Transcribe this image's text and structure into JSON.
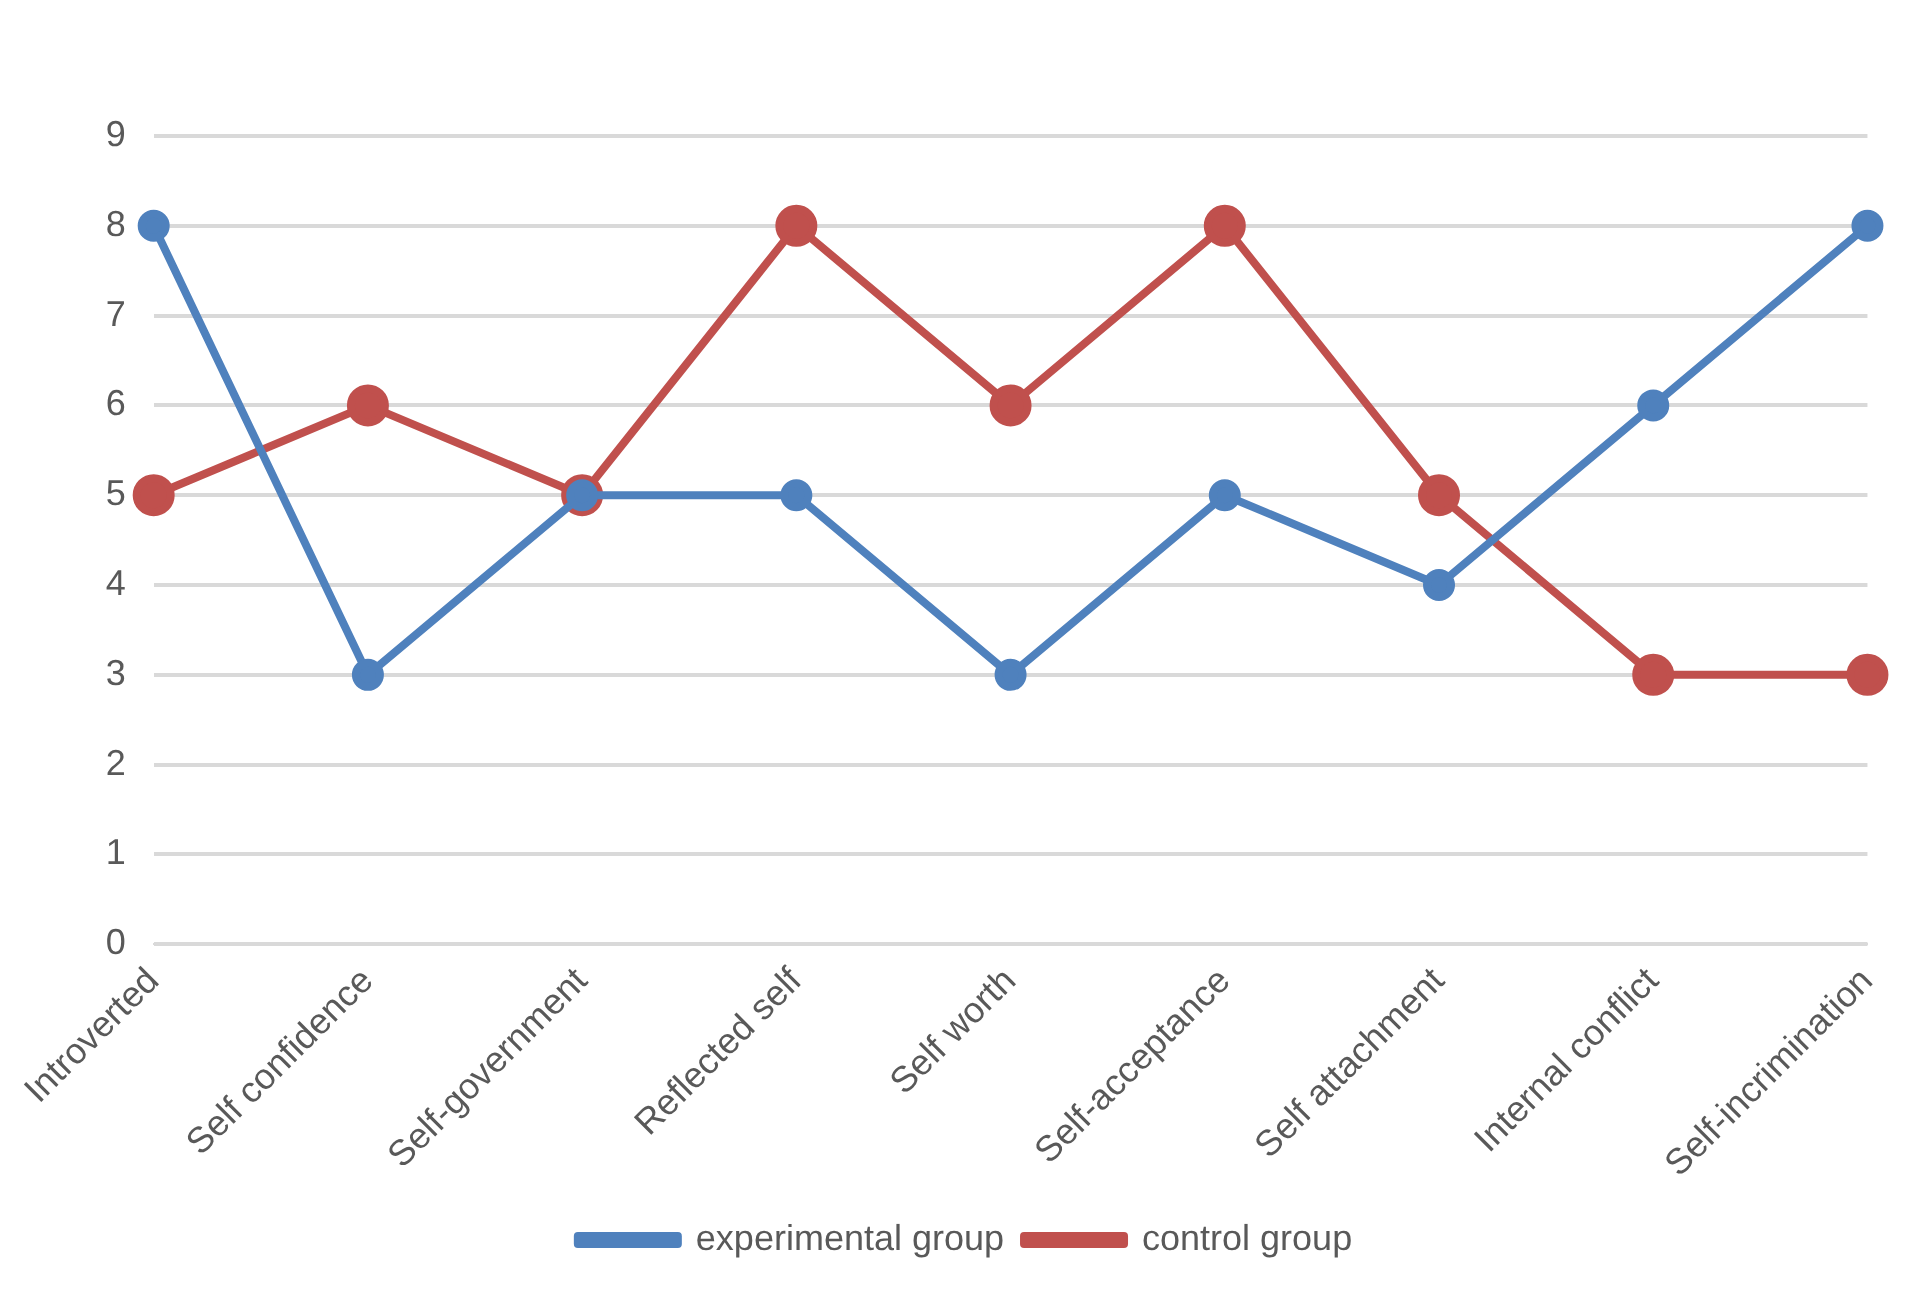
{
  "chart_data": {
    "type": "line",
    "categories": [
      "Introverted",
      "Self confidence",
      "Self-government",
      "Reflected self",
      "Self worth",
      "Self-acceptance",
      "Self attachment",
      "Internal conflict",
      "Self-incrimination"
    ],
    "series": [
      {
        "name": "experimental group",
        "color": "#4f81bd",
        "values": [
          8,
          3,
          5,
          5,
          3,
          5,
          4,
          6,
          8
        ]
      },
      {
        "name": "control group",
        "color": "#c0504d",
        "values": [
          5,
          6,
          5,
          8,
          6,
          8,
          5,
          3,
          3
        ]
      }
    ],
    "ylim": [
      0,
      9
    ],
    "yticks": [
      0,
      1,
      2,
      3,
      4,
      5,
      6,
      7,
      8,
      9
    ],
    "grid": "y",
    "legend": "bottom",
    "marker": "circle",
    "line_style": "solid"
  }
}
